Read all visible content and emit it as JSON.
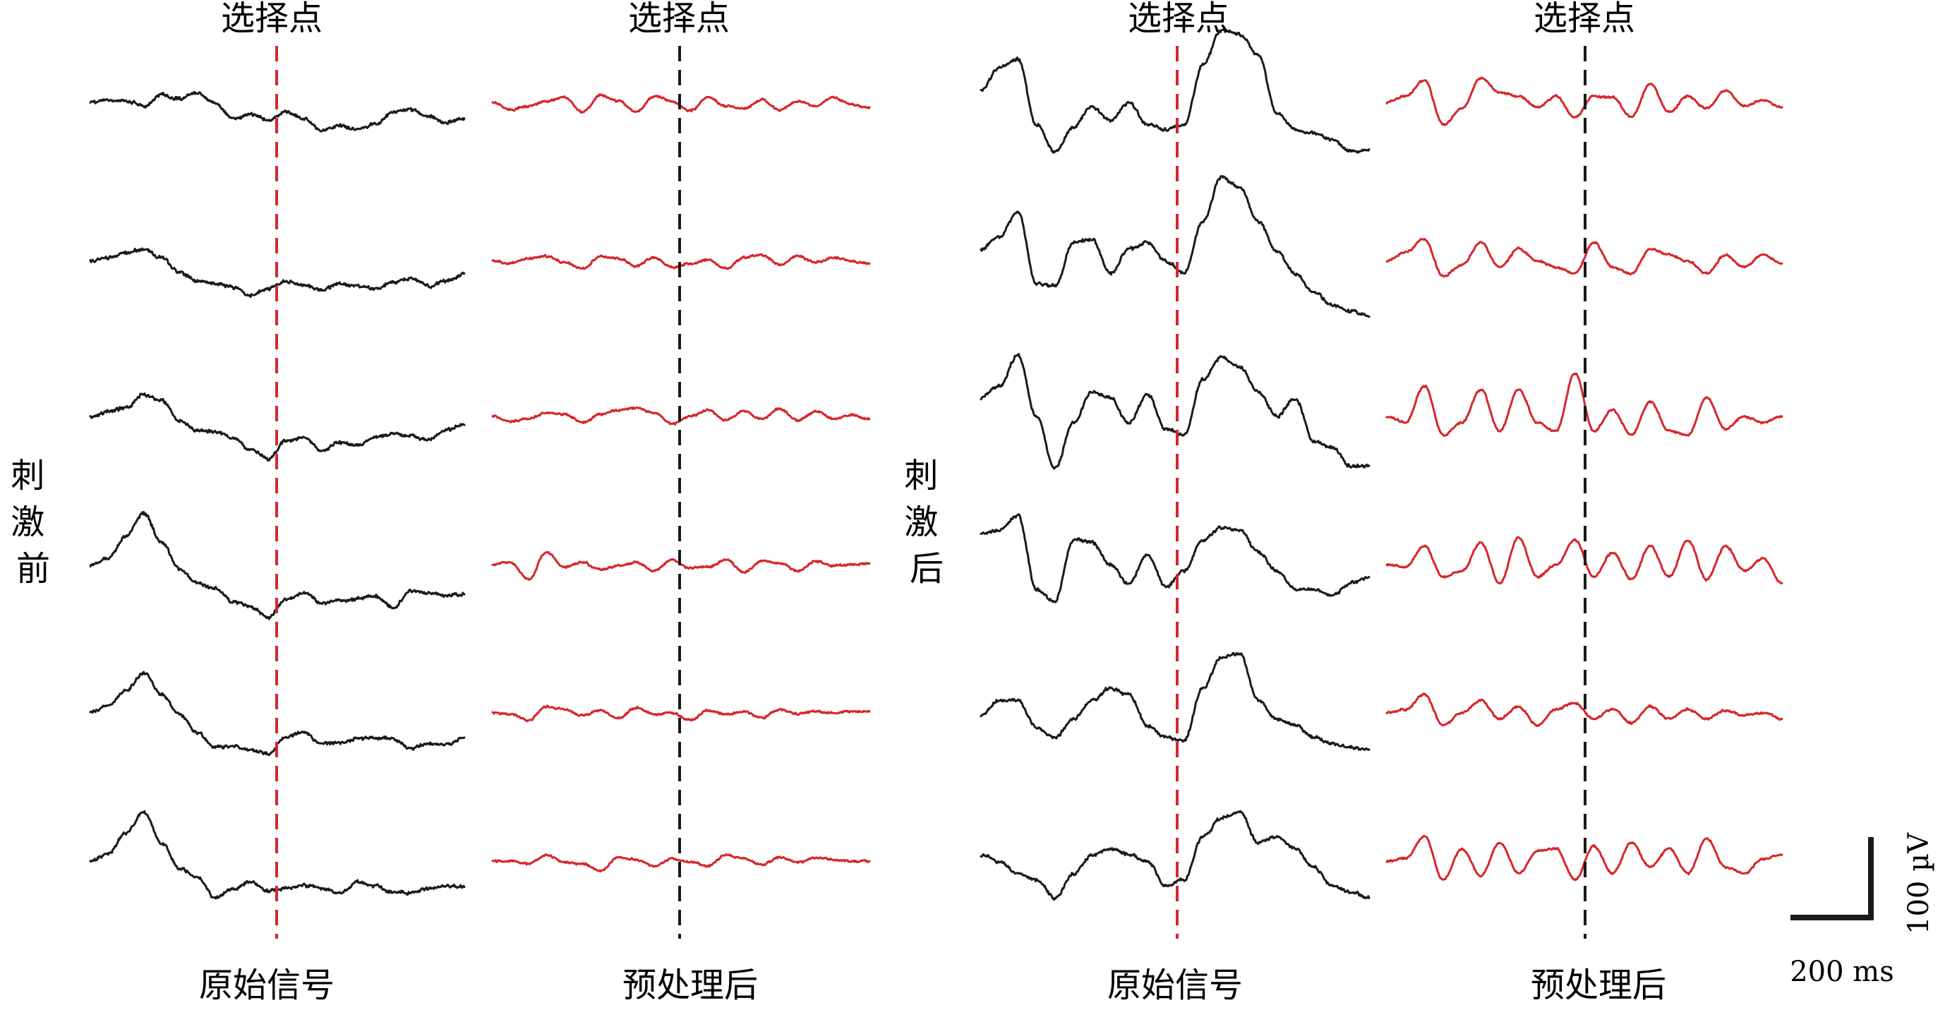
{
  "chart_data": {
    "type": "line",
    "titles": {
      "select_point": "选择点",
      "raw_signal": "原始信号",
      "preprocessed": "预处理后",
      "before_stim": "刺激前",
      "after_stim": "刺激后"
    },
    "scale_bar": {
      "amplitude": "100 µV",
      "time": "200 ms"
    },
    "colors": {
      "raw": "#1a1a1a",
      "processed": "#d6262c",
      "marker_raw": "#d6262c",
      "marker_processed": "#1a1a1a"
    },
    "panels": [
      {
        "condition": "刺激前",
        "raw": [
          {
            "name": "",
            "y": [
              0,
              2,
              1,
              -3,
              6,
              3,
              8,
              -1,
              -13,
              -10,
              -14,
              -8,
              -13,
              -23,
              -19,
              -22,
              -18,
              -8,
              -6,
              -11,
              -16,
              -13
            ]
          },
          {
            "name": "",
            "y": [
              0,
              3,
              7,
              10,
              3,
              -9,
              -16,
              -18,
              -21,
              -28,
              -22,
              -16,
              -19,
              -24,
              -18,
              -20,
              -22,
              -17,
              -14,
              -20,
              -16,
              -10
            ]
          },
          {
            "name": "",
            "y": [
              0,
              4,
              7,
              18,
              13,
              -4,
              -11,
              -12,
              -17,
              -27,
              -34,
              -20,
              -17,
              -28,
              -21,
              -24,
              -17,
              -14,
              -16,
              -19,
              -11,
              -7
            ]
          },
          {
            "name": "",
            "y": [
              -1,
              5,
              23,
              42,
              18,
              -3,
              -15,
              -19,
              -30,
              -34,
              -43,
              -28,
              -23,
              -31,
              -29,
              -28,
              -25,
              -35,
              -21,
              -23,
              -25,
              -24
            ]
          },
          {
            "name": "",
            "y": [
              0,
              6,
              18,
              32,
              15,
              -1,
              -16,
              -28,
              -27,
              -30,
              -33,
              -19,
              -16,
              -25,
              -24,
              -21,
              -20,
              -21,
              -29,
              -25,
              -26,
              -20
            ]
          },
          {
            "name": "",
            "y": [
              0,
              6,
              23,
              40,
              14,
              -6,
              -13,
              -30,
              -23,
              -17,
              -24,
              -22,
              -20,
              -22,
              -26,
              -17,
              -20,
              -25,
              -26,
              -22,
              -20,
              -21
            ]
          }
        ],
        "processed": [
          {
            "name": "",
            "y": [
              0,
              -6,
              -3,
              1,
              4,
              -8,
              6,
              1,
              -8,
              5,
              1,
              -7,
              4,
              -3,
              -5,
              2,
              -6,
              1,
              -3,
              4,
              -2,
              -4
            ]
          },
          {
            "name": "",
            "y": [
              0,
              -2,
              2,
              4,
              -1,
              -6,
              4,
              2,
              -4,
              3,
              -5,
              -2,
              1,
              -6,
              3,
              5,
              -3,
              4,
              -1,
              3,
              0,
              -2
            ]
          },
          {
            "name": "",
            "y": [
              0,
              -4,
              -2,
              3,
              2,
              -5,
              2,
              5,
              7,
              3,
              -6,
              0,
              5,
              -3,
              4,
              -2,
              6,
              -3,
              4,
              -2,
              1,
              -2
            ]
          },
          {
            "name": "",
            "y": [
              0,
              2,
              -12,
              10,
              -2,
              2,
              -4,
              -1,
              2,
              -5,
              4,
              -3,
              -2,
              4,
              -6,
              3,
              1,
              -5,
              3,
              -1,
              0,
              1
            ]
          },
          {
            "name": "",
            "y": [
              0,
              -1,
              -6,
              5,
              3,
              -2,
              2,
              -4,
              4,
              -1,
              0,
              -6,
              2,
              -1,
              1,
              -4,
              3,
              -1,
              1,
              0,
              1,
              1
            ]
          },
          {
            "name": "",
            "y": [
              0,
              0,
              -2,
              5,
              -1,
              -2,
              -8,
              3,
              1,
              -4,
              2,
              -1,
              -4,
              5,
              2,
              -3,
              3,
              -1,
              3,
              1,
              0,
              0
            ]
          }
        ]
      },
      {
        "condition": "刺激后",
        "raw": [
          {
            "name": "",
            "y": [
              10,
              28,
              35,
              -18,
              -40,
              -20,
              -3,
              -15,
              0,
              -18,
              -22,
              -18,
              30,
              58,
              55,
              38,
              -8,
              -22,
              -25,
              -30,
              -40,
              -38
            ]
          },
          {
            "name": "",
            "y": [
              10,
              20,
              40,
              -18,
              -20,
              15,
              18,
              -10,
              10,
              15,
              0,
              -10,
              32,
              68,
              60,
              32,
              8,
              -10,
              -25,
              -35,
              -40,
              -45
            ]
          },
          {
            "name": "",
            "y": [
              15,
              25,
              50,
              0,
              -42,
              -5,
              20,
              15,
              -5,
              18,
              -10,
              -15,
              30,
              48,
              40,
              20,
              0,
              15,
              -20,
              -25,
              -40,
              -40
            ]
          },
          {
            "name": "",
            "y": [
              25,
              28,
              40,
              -20,
              -30,
              20,
              18,
              0,
              -15,
              8,
              -18,
              -5,
              20,
              30,
              28,
              10,
              -5,
              -20,
              -20,
              -25,
              -15,
              -10
            ]
          },
          {
            "name": "",
            "y": [
              -2,
              10,
              10,
              -12,
              -20,
              -5,
              10,
              20,
              15,
              -10,
              -20,
              -22,
              20,
              45,
              48,
              10,
              -5,
              -10,
              -20,
              -25,
              -28,
              -30
            ]
          },
          {
            "name": "",
            "y": [
              5,
              0,
              -10,
              -15,
              -30,
              -10,
              5,
              10,
              5,
              0,
              -20,
              -15,
              20,
              35,
              40,
              15,
              20,
              10,
              -5,
              -20,
              -25,
              -30
            ]
          }
        ],
        "processed": [
          {
            "name": "",
            "y": [
              0,
              5,
              18,
              -18,
              -5,
              20,
              8,
              5,
              -4,
              5,
              -12,
              5,
              4,
              -12,
              15,
              -8,
              5,
              -5,
              10,
              -3,
              2,
              -4
            ]
          },
          {
            "name": "",
            "y": [
              0,
              7,
              18,
              -12,
              -3,
              15,
              -5,
              10,
              0,
              -5,
              -10,
              15,
              -5,
              -10,
              10,
              5,
              0,
              -10,
              5,
              -5,
              5,
              -2
            ]
          },
          {
            "name": "",
            "y": [
              0,
              -5,
              25,
              -15,
              -5,
              22,
              -12,
              22,
              -5,
              -12,
              35,
              -12,
              5,
              -15,
              12,
              -12,
              -15,
              15,
              -10,
              0,
              -5,
              0
            ]
          },
          {
            "name": "",
            "y": [
              0,
              -2,
              15,
              -10,
              -5,
              18,
              -15,
              22,
              -10,
              0,
              20,
              -10,
              10,
              -12,
              15,
              -10,
              20,
              -12,
              15,
              -5,
              5,
              -15
            ]
          },
          {
            "name": "",
            "y": [
              0,
              3,
              15,
              -10,
              0,
              10,
              -5,
              5,
              -10,
              3,
              8,
              -5,
              3,
              -8,
              5,
              -5,
              3,
              -5,
              2,
              -2,
              0,
              -5
            ]
          },
          {
            "name": "",
            "y": [
              0,
              2,
              20,
              -15,
              10,
              -12,
              15,
              -10,
              8,
              10,
              -15,
              12,
              -10,
              15,
              -5,
              10,
              -10,
              18,
              -5,
              -10,
              2,
              5
            ]
          }
        ]
      }
    ]
  }
}
